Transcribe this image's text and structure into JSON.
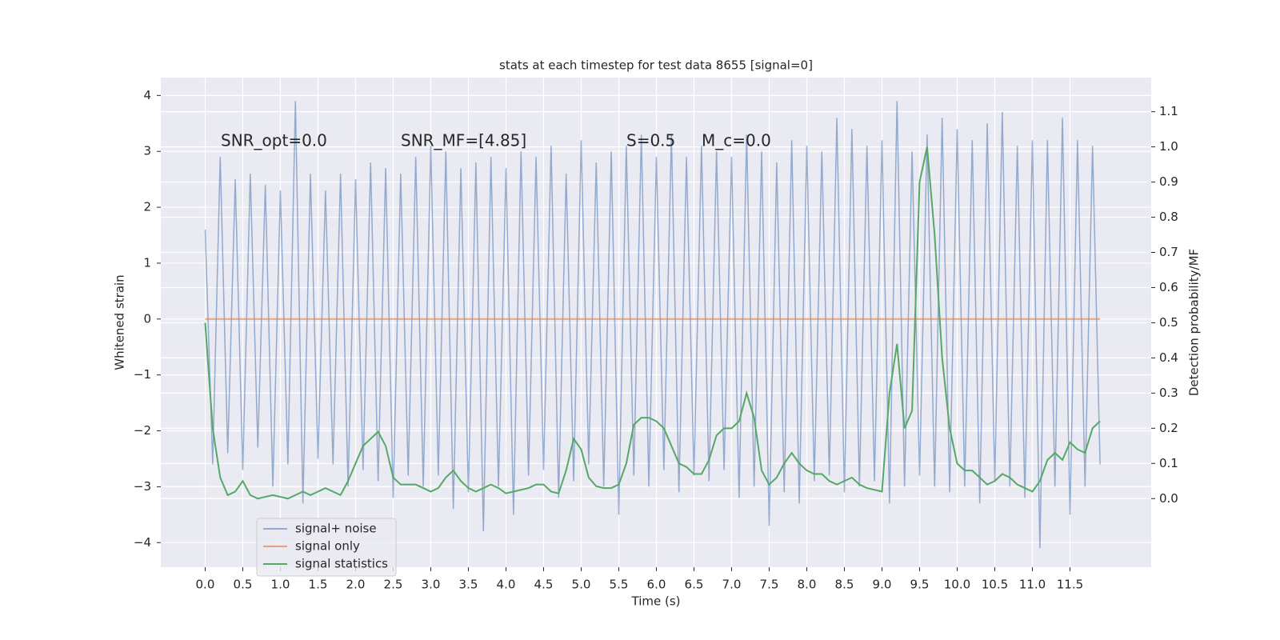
{
  "chart_data": {
    "type": "line",
    "title": "stats at each timestep for test data 8655 [signal=0]",
    "xlabel": "Time (s)",
    "ylabel": "Whitened strain",
    "y2label": "Detection probability/MF",
    "annotations": [
      "SNR_opt=0.0",
      "SNR_MF=[4.85]",
      "S=0.5",
      "M_c=0.0"
    ],
    "x": [
      0,
      0.1,
      0.2,
      0.3,
      0.4,
      0.5,
      0.6,
      0.7,
      0.8,
      0.9,
      1,
      1.1,
      1.2,
      1.3,
      1.4,
      1.5,
      1.6,
      1.7,
      1.8,
      1.9,
      2,
      2.1,
      2.2,
      2.3,
      2.4,
      2.5,
      2.6,
      2.7,
      2.8,
      2.9,
      3,
      3.1,
      3.2,
      3.3,
      3.4,
      3.5,
      3.6,
      3.7,
      3.8,
      3.9,
      4,
      4.1,
      4.2,
      4.3,
      4.4,
      4.5,
      4.6,
      4.7,
      4.8,
      4.9,
      5,
      5.1,
      5.2,
      5.3,
      5.4,
      5.5,
      5.6,
      5.7,
      5.8,
      5.9,
      6,
      6.1,
      6.2,
      6.3,
      6.4,
      6.5,
      6.6,
      6.7,
      6.8,
      6.9,
      7,
      7.1,
      7.2,
      7.3,
      7.4,
      7.5,
      7.6,
      7.7,
      7.8,
      7.9,
      8,
      8.1,
      8.2,
      8.3,
      8.4,
      8.5,
      8.6,
      8.7,
      8.8,
      8.9,
      9,
      9.1,
      9.2,
      9.3,
      9.4,
      9.5,
      9.6,
      9.7,
      9.8,
      9.9,
      10,
      10.1,
      10.2,
      10.3,
      10.4,
      10.5,
      10.6,
      10.7,
      10.8,
      10.9,
      11,
      11.1,
      11.2,
      11.3,
      11.4,
      11.5,
      11.6,
      11.7,
      11.8,
      11.9
    ],
    "series": [
      {
        "name": "signal+ noise",
        "color": "#4c72b0",
        "axis": "y",
        "values": [
          1.6,
          -2.6,
          2.9,
          -2.4,
          2.5,
          -2.7,
          2.6,
          -2.3,
          2.4,
          -3.0,
          2.3,
          -2.6,
          3.9,
          -3.3,
          2.6,
          -2.5,
          2.3,
          -2.6,
          2.6,
          -3.0,
          2.5,
          -2.7,
          2.8,
          -2.9,
          2.7,
          -3.2,
          2.6,
          -2.8,
          2.9,
          -3.0,
          3.1,
          -2.8,
          3.0,
          -3.4,
          2.7,
          -3.1,
          2.8,
          -3.8,
          2.9,
          -3.0,
          2.7,
          -3.5,
          3.0,
          -2.8,
          2.9,
          -2.7,
          3.1,
          -3.2,
          2.6,
          -2.9,
          3.2,
          -2.6,
          2.8,
          -3.0,
          3.0,
          -3.5,
          3.1,
          -2.8,
          3.3,
          -3.0,
          2.9,
          -2.7,
          3.3,
          -3.1,
          2.9,
          -2.8,
          3.1,
          -2.9,
          3.0,
          -2.7,
          2.9,
          -3.2,
          3.3,
          -3.0,
          3.0,
          -3.7,
          2.8,
          -3.1,
          3.2,
          -3.3,
          3.1,
          -2.9,
          3.0,
          -2.8,
          3.6,
          -3.1,
          3.4,
          -3.0,
          3.1,
          -2.9,
          3.2,
          -3.3,
          3.9,
          -3.0,
          3.0,
          -2.8,
          3.3,
          -3.0,
          3.6,
          -3.1,
          3.4,
          -3.0,
          3.2,
          -3.3,
          3.5,
          -2.9,
          3.7,
          -3.0,
          3.1,
          -3.2,
          3.2,
          -4.1,
          3.2,
          -3.0,
          3.6,
          -3.5,
          3.2,
          -3.0,
          3.1,
          -2.6
        ]
      },
      {
        "name": "signal only",
        "color": "#dd8452",
        "axis": "y",
        "values": [
          0,
          0,
          0,
          0,
          0,
          0,
          0,
          0,
          0,
          0,
          0,
          0,
          0,
          0,
          0,
          0,
          0,
          0,
          0,
          0,
          0,
          0,
          0,
          0,
          0,
          0,
          0,
          0,
          0,
          0,
          0,
          0,
          0,
          0,
          0,
          0,
          0,
          0,
          0,
          0,
          0,
          0,
          0,
          0,
          0,
          0,
          0,
          0,
          0,
          0,
          0,
          0,
          0,
          0,
          0,
          0,
          0,
          0,
          0,
          0,
          0,
          0,
          0,
          0,
          0,
          0,
          0,
          0,
          0,
          0,
          0,
          0,
          0,
          0,
          0,
          0,
          0,
          0,
          0,
          0,
          0,
          0,
          0,
          0,
          0,
          0,
          0,
          0,
          0,
          0,
          0,
          0,
          0,
          0,
          0,
          0,
          0,
          0,
          0,
          0,
          0,
          0,
          0,
          0,
          0,
          0,
          0,
          0,
          0,
          0,
          0,
          0,
          0,
          0,
          0,
          0,
          0,
          0,
          0,
          0
        ]
      },
      {
        "name": "signal statistics",
        "color": "#55a868",
        "axis": "y2",
        "values": [
          0.5,
          0.2,
          0.06,
          0.01,
          0.02,
          0.05,
          0.01,
          0,
          0.005,
          0.01,
          0.005,
          0,
          0.01,
          0.02,
          0.01,
          0.02,
          0.03,
          0.02,
          0.01,
          0.05,
          0.1,
          0.15,
          0.17,
          0.19,
          0.15,
          0.06,
          0.04,
          0.04,
          0.04,
          0.03,
          0.02,
          0.03,
          0.06,
          0.08,
          0.05,
          0.03,
          0.02,
          0.03,
          0.04,
          0.03,
          0.015,
          0.02,
          0.025,
          0.03,
          0.04,
          0.04,
          0.02,
          0.015,
          0.08,
          0.17,
          0.14,
          0.06,
          0.035,
          0.03,
          0.03,
          0.04,
          0.1,
          0.21,
          0.23,
          0.23,
          0.22,
          0.2,
          0.15,
          0.1,
          0.09,
          0.07,
          0.07,
          0.11,
          0.18,
          0.2,
          0.2,
          0.22,
          0.3,
          0.23,
          0.08,
          0.04,
          0.06,
          0.1,
          0.13,
          0.1,
          0.08,
          0.07,
          0.07,
          0.05,
          0.04,
          0.05,
          0.06,
          0.04,
          0.03,
          0.025,
          0.02,
          0.3,
          0.44,
          0.2,
          0.25,
          0.9,
          1.0,
          0.75,
          0.4,
          0.2,
          0.1,
          0.08,
          0.08,
          0.06,
          0.04,
          0.05,
          0.07,
          0.06,
          0.04,
          0.03,
          0.02,
          0.05,
          0.11,
          0.13,
          0.11,
          0.16,
          0.14,
          0.13,
          0.2,
          0.22
        ]
      }
    ],
    "xlim": [
      -0.59,
      12.58
    ],
    "xticks": [
      {
        "value": 0,
        "label": "0.0"
      },
      0.5,
      {
        "value": 1,
        "label": "1.0"
      },
      1.5,
      {
        "value": 2,
        "label": "2.0"
      },
      2.5,
      {
        "value": 3,
        "label": "3.0"
      },
      3.5,
      {
        "value": 4,
        "label": "4.0"
      },
      4.5,
      {
        "value": 5,
        "label": "5.0"
      },
      5.5,
      {
        "value": 6,
        "label": "6.0"
      },
      6.5,
      {
        "value": 7,
        "label": "7.0"
      },
      7.5,
      {
        "value": 8,
        "label": "8.0"
      },
      8.5,
      {
        "value": 9,
        "label": "9.0"
      },
      9.5,
      {
        "value": 10,
        "label": "10.0"
      },
      10.5,
      {
        "value": 11,
        "label": "11.0"
      },
      11.5
    ],
    "ylim": [
      -4.44,
      4.32
    ],
    "yticks": [
      {
        "value": -4,
        "label": "−4"
      },
      {
        "value": -3,
        "label": "−3"
      },
      {
        "value": -2,
        "label": "−2"
      },
      {
        "value": -1,
        "label": "−1"
      },
      0,
      1,
      2,
      3,
      4
    ],
    "y2lim": [
      -0.195,
      1.197
    ],
    "y2ticks": [
      {
        "value": 0,
        "label": "0.0"
      },
      0.1,
      0.2,
      0.3,
      0.4,
      0.5,
      0.6,
      0.7,
      0.8,
      0.9,
      {
        "value": 1,
        "label": "1.0"
      },
      1.1
    ],
    "grid": true,
    "legend": "lower left"
  }
}
